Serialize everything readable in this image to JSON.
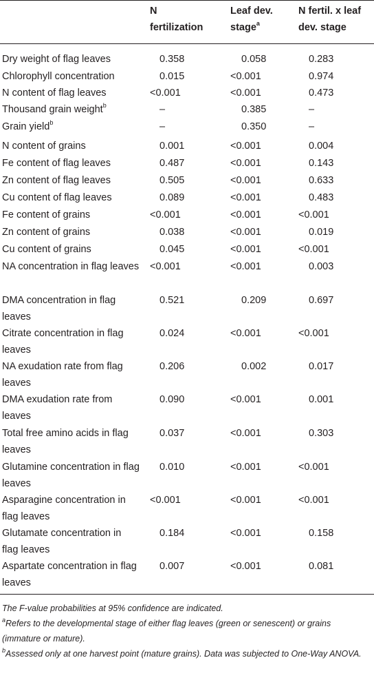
{
  "headers": {
    "col1": [
      "N",
      "fertilization"
    ],
    "col2": [
      "Leaf dev.",
      "stage",
      "a"
    ],
    "col3": [
      "N fertil. x leaf",
      "dev. stage"
    ]
  },
  "rows": [
    {
      "label": "Dry weight of flag leaves",
      "sup": "",
      "v": [
        "0.358",
        "0.058",
        "0.283"
      ]
    },
    {
      "label": "Chlorophyll concentration",
      "sup": "",
      "v": [
        "0.015",
        "<0.001",
        "0.974"
      ]
    },
    {
      "label": "N content of flag leaves",
      "sup": "",
      "v": [
        "<0.001",
        "<0.001",
        "0.473"
      ]
    },
    {
      "label": "Thousand grain weight",
      "sup": "b",
      "v": [
        "–",
        "0.385",
        "–"
      ]
    },
    {
      "label": "Grain yield",
      "sup": "b",
      "v": [
        "–",
        "0.350",
        "–"
      ]
    },
    {
      "label": "N content of grains",
      "sup": "",
      "v": [
        "0.001",
        "<0.001",
        "0.004"
      ]
    },
    {
      "label": "Fe content of flag leaves",
      "sup": "",
      "v": [
        "0.487",
        "<0.001",
        "0.143"
      ]
    },
    {
      "label": "Zn content of flag leaves",
      "sup": "",
      "v": [
        "0.505",
        "<0.001",
        "0.633"
      ]
    },
    {
      "label": "Cu content of flag leaves",
      "sup": "",
      "v": [
        "0.089",
        "<0.001",
        "0.483"
      ]
    },
    {
      "label": "Fe content of grains",
      "sup": "",
      "v": [
        "<0.001",
        "<0.001",
        "<0.001"
      ]
    },
    {
      "label": "Zn content of grains",
      "sup": "",
      "v": [
        "0.038",
        "<0.001",
        "0.019"
      ]
    },
    {
      "label": "Cu content of grains",
      "sup": "",
      "v": [
        "0.045",
        "<0.001",
        "<0.001"
      ]
    },
    {
      "label": "NA concentration in flag leaves",
      "sup": "",
      "v": [
        "<0.001",
        "<0.001",
        "0.003"
      ]
    },
    {
      "label": "DMA concentration in flag leaves",
      "sup": "",
      "v": [
        "0.521",
        "0.209",
        "0.697"
      ]
    },
    {
      "label": "Citrate concentration in flag leaves",
      "sup": "",
      "v": [
        "0.024",
        "<0.001",
        "<0.001"
      ]
    },
    {
      "label": "NA exudation rate from flag leaves",
      "sup": "",
      "v": [
        "0.206",
        "0.002",
        "0.017"
      ]
    },
    {
      "label": "DMA exudation rate from leaves",
      "sup": "",
      "v": [
        "0.090",
        "<0.001",
        "0.001"
      ]
    },
    {
      "label": "Total free amino acids in flag leaves",
      "sup": "",
      "v": [
        "0.037",
        "<0.001",
        "0.303"
      ]
    },
    {
      "label": "Glutamine concentration in flag leaves",
      "sup": "",
      "v": [
        "0.010",
        "<0.001",
        "<0.001"
      ]
    },
    {
      "label": "Asparagine concentration in flag leaves",
      "sup": "",
      "v": [
        "<0.001",
        "<0.001",
        "<0.001"
      ]
    },
    {
      "label": "Glutamate concentration in flag leaves",
      "sup": "",
      "v": [
        "0.184",
        "<0.001",
        "0.158"
      ]
    },
    {
      "label": "Aspartate concentration in flag leaves",
      "sup": "",
      "v": [
        "0.007",
        "<0.001",
        "0.081"
      ]
    }
  ],
  "footnotes": {
    "main": "The F-value probabilities at 95% confidence are indicated.",
    "a_mark": "a",
    "a_text": "Refers to the developmental stage of either flag leaves (green or senescent) or grains (immature or mature).",
    "b_mark": "b",
    "b_text": "Assessed only at one harvest point (mature grains). Data was subjected to One-Way ANOVA."
  }
}
